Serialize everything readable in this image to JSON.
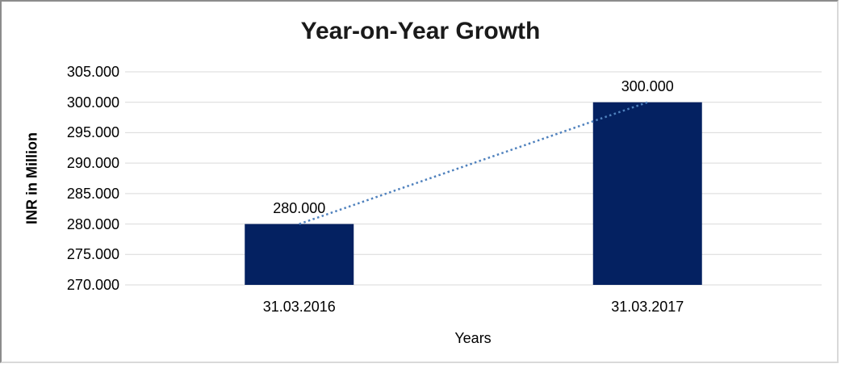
{
  "chart_data": {
    "type": "bar",
    "title": "Year-on-Year Growth",
    "xlabel": "Years",
    "ylabel": "INR in Million",
    "categories": [
      "31.03.2016",
      "31.03.2017"
    ],
    "values": [
      280000,
      300000
    ],
    "value_labels": [
      "280.000",
      "300.000"
    ],
    "ylim": [
      270000,
      305000
    ],
    "ytick_step": 5000,
    "ytick_labels": [
      "270.000",
      "275.000",
      "280.000",
      "285.000",
      "290.000",
      "295.000",
      "300.000",
      "305.000"
    ],
    "grid": true,
    "legend": "none",
    "trendline": {
      "type": "linear",
      "style": "dotted",
      "connects": "bar tops, first category to last category"
    }
  },
  "colors": {
    "bar": "#042161",
    "trendline": "#4f81bd",
    "gridline": "#d9d9d9",
    "title_text": "#1a1a1a",
    "axis_text": "#000000",
    "frame_dark": "#8c8c8c",
    "frame_light": "#d9d9d9",
    "background": "#ffffff"
  }
}
